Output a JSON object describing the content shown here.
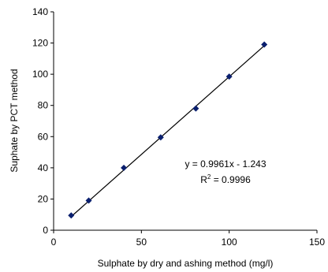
{
  "chart_data": {
    "type": "scatter",
    "xlabel": "Sulphate by dry and ashing method (mg/l)",
    "ylabel": "Suphate by PCT method",
    "xlim": [
      0,
      150
    ],
    "ylim": [
      0,
      140
    ],
    "xticks": [
      0,
      50,
      100,
      150
    ],
    "yticks": [
      0,
      20,
      40,
      60,
      80,
      100,
      120,
      140
    ],
    "grid": false,
    "marker_color": "#0a1f6e",
    "line_color": "#000000",
    "series": [
      {
        "x": [
          10,
          20,
          40,
          61,
          81,
          100,
          120
        ],
        "y": [
          9.5,
          19,
          40,
          59.5,
          78,
          98.5,
          119
        ]
      }
    ],
    "trendline": {
      "slope": 0.9961,
      "intercept": -1.243,
      "x_range": [
        10,
        120
      ],
      "equation": "y = 0.9961x - 1.243",
      "r2_prefix": "R",
      "r2_sup": "2",
      "r2_suffix": " = 0.9996"
    }
  }
}
